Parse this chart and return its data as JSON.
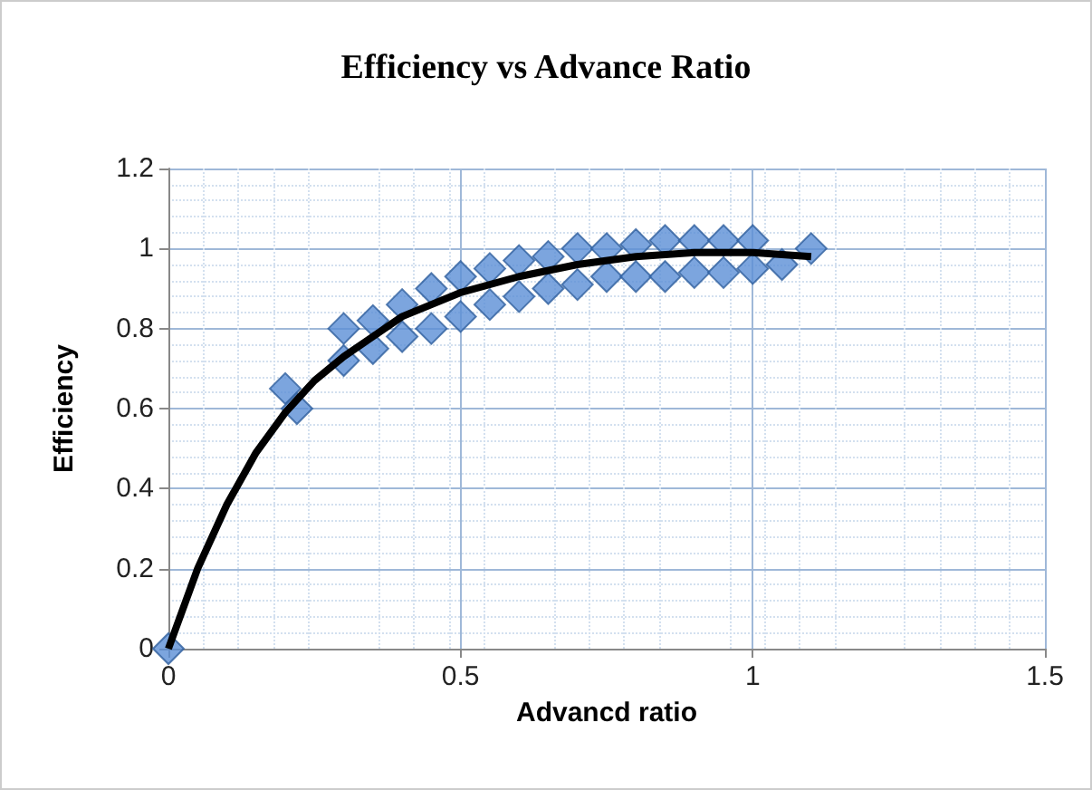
{
  "chart_data": {
    "type": "scatter",
    "title": "Efficiency vs Advance Ratio",
    "xlabel": "Advancd ratio",
    "ylabel": "Efficiency",
    "xlim": [
      0,
      1.5
    ],
    "xticks": [
      0,
      0.5,
      1,
      1.5
    ],
    "ylim": [
      0,
      1.2
    ],
    "yticks": [
      0,
      0.2,
      0.4,
      0.6,
      0.8,
      1,
      1.2
    ],
    "grid": true,
    "marker": "diamond",
    "series": [
      {
        "color": "#5b8fd6",
        "x": [
          0,
          0.2,
          0.22,
          0.3,
          0.3,
          0.35,
          0.35,
          0.4,
          0.4,
          0.45,
          0.45,
          0.5,
          0.5,
          0.55,
          0.55,
          0.6,
          0.6,
          0.65,
          0.65,
          0.7,
          0.7,
          0.75,
          0.75,
          0.8,
          0.8,
          0.85,
          0.85,
          0.9,
          0.9,
          0.95,
          0.95,
          1.0,
          1.0,
          1.05,
          1.1
        ],
        "values": [
          0,
          0.65,
          0.6,
          0.8,
          0.72,
          0.82,
          0.75,
          0.86,
          0.78,
          0.9,
          0.8,
          0.93,
          0.83,
          0.95,
          0.86,
          0.97,
          0.88,
          0.98,
          0.9,
          1.0,
          0.91,
          1.0,
          0.93,
          1.01,
          0.93,
          1.02,
          0.93,
          1.02,
          0.94,
          1.02,
          0.94,
          1.02,
          0.95,
          0.96,
          1.0
        ]
      },
      {
        "type": "line",
        "color": "#000000",
        "marker": "none",
        "x": [
          0,
          0.05,
          0.1,
          0.15,
          0.2,
          0.25,
          0.3,
          0.35,
          0.4,
          0.5,
          0.6,
          0.7,
          0.8,
          0.9,
          1.0,
          1.1
        ],
        "values": [
          0,
          0.2,
          0.36,
          0.49,
          0.59,
          0.67,
          0.73,
          0.78,
          0.83,
          0.89,
          0.93,
          0.96,
          0.98,
          0.99,
          0.99,
          0.98
        ]
      }
    ]
  }
}
